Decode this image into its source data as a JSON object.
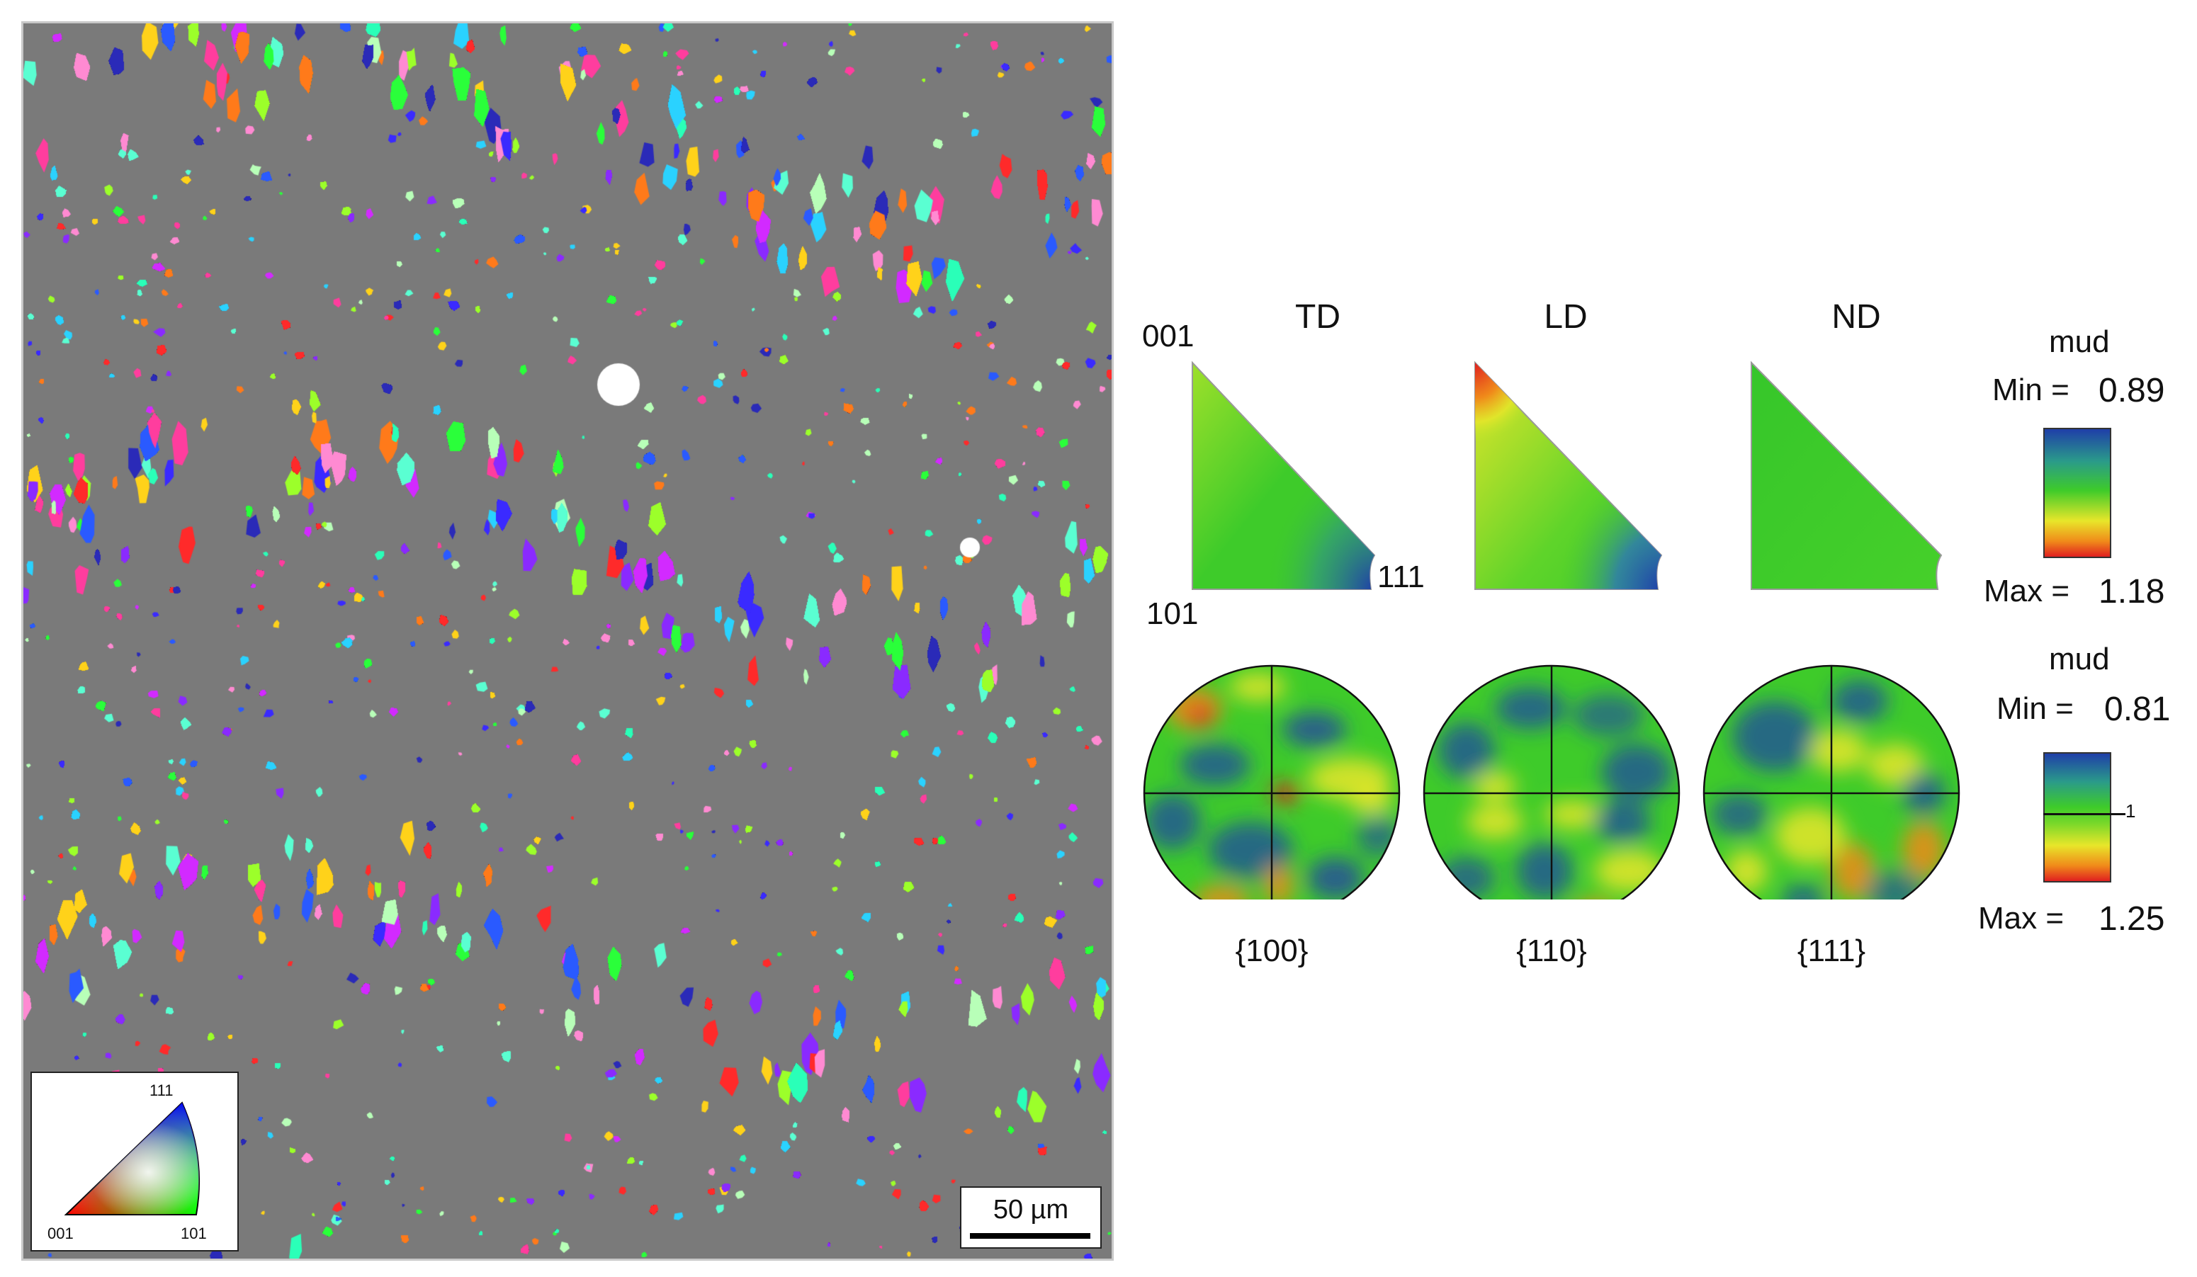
{
  "ebsd_map": {
    "palette": [
      "#ff2a2a",
      "#ff3d9e",
      "#ff7a1a",
      "#ffd21a",
      "#9cff2a",
      "#2aff3a",
      "#2affb8",
      "#2ad2ff",
      "#2a5aff",
      "#3a2aff",
      "#8a2aff",
      "#d22aff",
      "#ff8ad2",
      "#b8ffb8",
      "#5affd2",
      "#2a2ab8"
    ],
    "scale_bar_label": "50 µm",
    "ipf_key": {
      "top": "111",
      "left": "001",
      "right": "101"
    }
  },
  "ipf_headers": [
    "TD",
    "LD",
    "ND"
  ],
  "ipf_corners": {
    "c001": "001",
    "c101": "101",
    "c111": "111"
  },
  "pole_figures": [
    "{100}",
    "{110}",
    "{111}"
  ],
  "legend_ipf": {
    "title": "mud",
    "min_label": "Min =",
    "min_value": "0.89",
    "max_label": "Max =",
    "max_value": "1.18"
  },
  "legend_pf": {
    "title": "mud",
    "min_label": "Min =",
    "min_value": "0.81",
    "max_label": "Max =",
    "max_value": "1.25",
    "contour_label": "1"
  },
  "colors": {
    "green": "#3ecb2a",
    "yellow": "#e8e62a",
    "red": "#e02020",
    "blue": "#1f3fa8",
    "orange": "#f08a1a"
  }
}
